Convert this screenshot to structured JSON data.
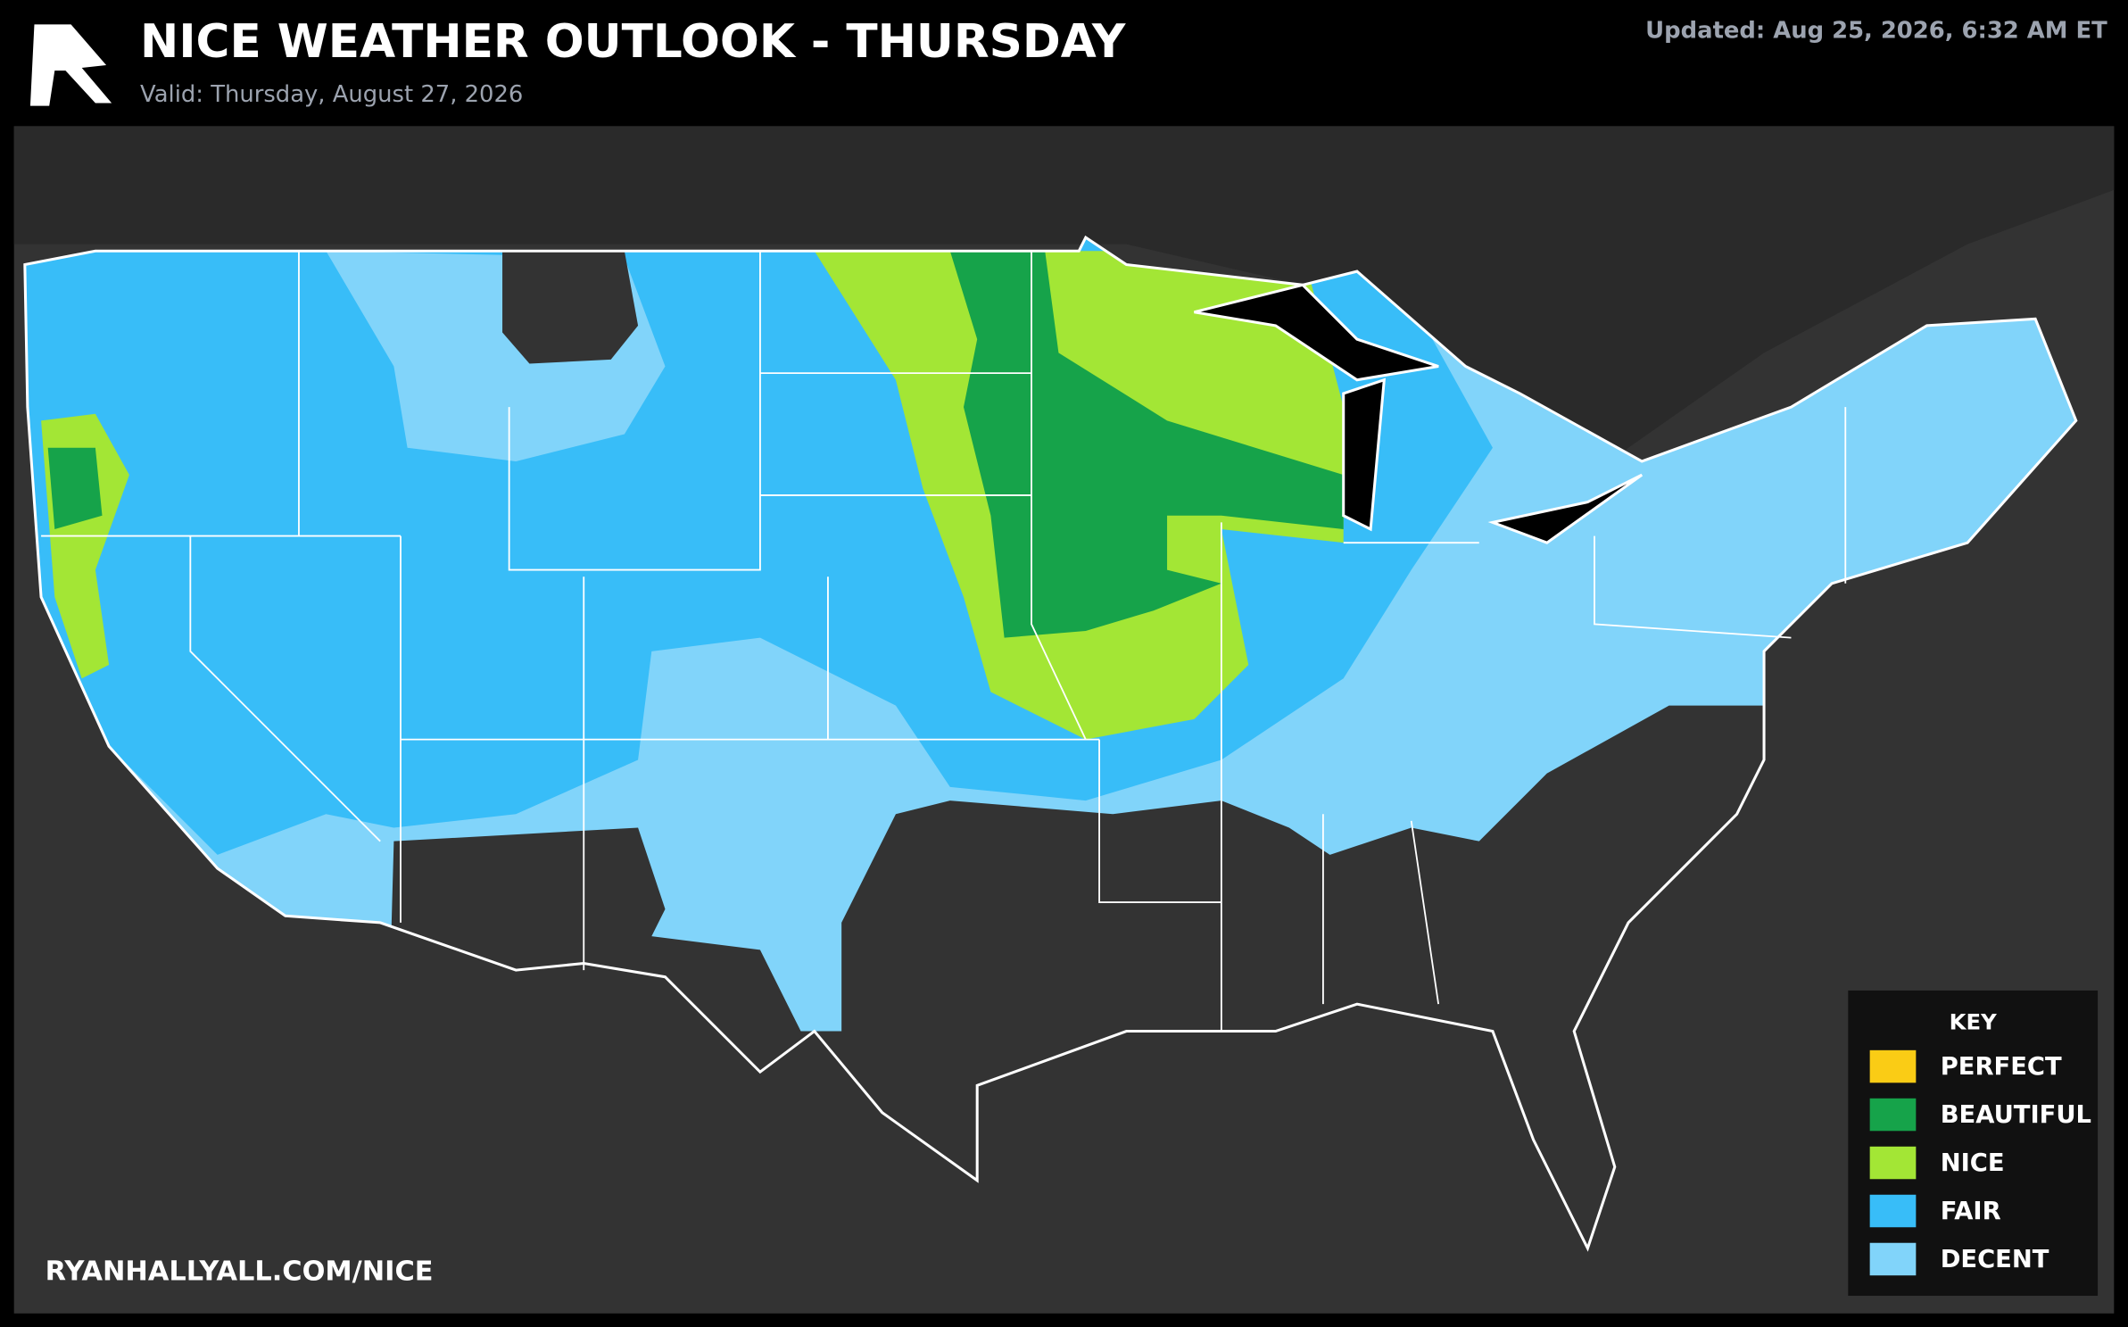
{
  "header": {
    "title": "NICE WEATHER OUTLOOK - THURSDAY",
    "valid": "Valid: Thursday, August 27, 2026",
    "updated": "Updated: Aug 25, 2026, 6:32 AM ET"
  },
  "legend": {
    "title": "KEY",
    "items": [
      {
        "label": "PERFECT",
        "color": "#facc15"
      },
      {
        "label": "BEAUTIFUL",
        "color": "#16a34a"
      },
      {
        "label": "NICE",
        "color": "#a3e635"
      },
      {
        "label": "FAIR",
        "color": "#38bdf8"
      },
      {
        "label": "DECENT",
        "color": "#81d4fa"
      }
    ]
  },
  "footer": {
    "url": "RYANHALLYALL.COM/NICE"
  }
}
